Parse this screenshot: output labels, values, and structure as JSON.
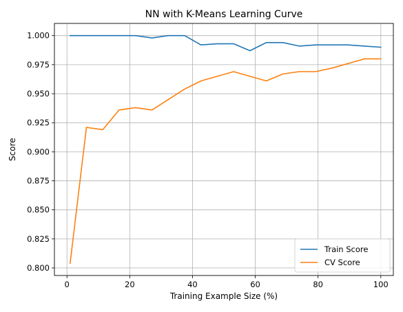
{
  "chart_data": {
    "type": "line",
    "title": "NN with K-Means Learning Curve",
    "xlabel": "Training Example Size (%)",
    "ylabel": "Score",
    "xlim": [
      -4,
      104
    ],
    "ylim": [
      0.7935,
      1.0105
    ],
    "xticks": [
      0,
      20,
      40,
      60,
      80,
      100
    ],
    "xtick_labels": [
      "0",
      "20",
      "40",
      "60",
      "80",
      "100"
    ],
    "yticks": [
      0.8,
      0.825,
      0.85,
      0.875,
      0.9,
      0.925,
      0.95,
      0.975,
      1.0
    ],
    "ytick_labels": [
      "0.800",
      "0.825",
      "0.850",
      "0.875",
      "0.900",
      "0.925",
      "0.950",
      "0.975",
      "1.000"
    ],
    "grid": true,
    "legend_position": "bottom-right",
    "x": [
      1,
      6.2,
      11.4,
      16.6,
      21.8,
      27.1,
      32.3,
      37.5,
      42.7,
      47.9,
      53.1,
      58.3,
      63.5,
      68.8,
      74,
      79.2,
      84.4,
      89.6,
      94.8,
      100
    ],
    "series": [
      {
        "name": "Train Score",
        "color": "#1f77b4",
        "values": [
          1.0,
          1.0,
          1.0,
          1.0,
          1.0,
          0.998,
          1.0,
          1.0,
          0.992,
          0.993,
          0.993,
          0.987,
          0.994,
          0.994,
          0.991,
          0.992,
          0.992,
          0.992,
          0.991,
          0.99
        ]
      },
      {
        "name": "CV Score",
        "color": "#ff7f0e",
        "values": [
          0.804,
          0.921,
          0.919,
          0.936,
          0.938,
          0.936,
          0.945,
          0.954,
          0.961,
          0.965,
          0.969,
          0.965,
          0.961,
          0.967,
          0.969,
          0.969,
          0.972,
          0.976,
          0.98,
          0.98
        ]
      }
    ]
  }
}
